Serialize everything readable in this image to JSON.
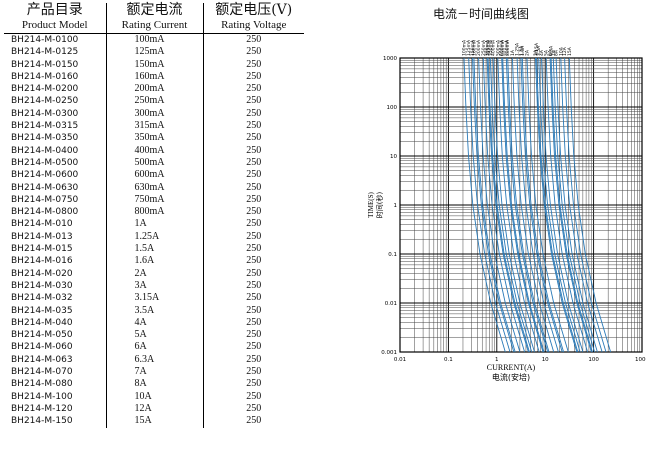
{
  "table": {
    "headers": [
      {
        "zh": "产品目录",
        "en": "Product Model"
      },
      {
        "zh": "额定电流",
        "en": "Rating Current"
      },
      {
        "zh": "额定电压(V)",
        "en": "Rating Voltage"
      }
    ],
    "rows": [
      [
        "BH214-M-0100",
        "100mA",
        "250"
      ],
      [
        "BH214-M-0125",
        "125mA",
        "250"
      ],
      [
        "BH214-M-0150",
        "150mA",
        "250"
      ],
      [
        "BH214-M-0160",
        "160mA",
        "250"
      ],
      [
        "BH214-M-0200",
        "200mA",
        "250"
      ],
      [
        "BH214-M-0250",
        "250mA",
        "250"
      ],
      [
        "BH214-M-0300",
        "300mA",
        "250"
      ],
      [
        "BH214-M-0315",
        "315mA",
        "250"
      ],
      [
        "BH214-M-0350",
        "350mA",
        "250"
      ],
      [
        "BH214-M-0400",
        "400mA",
        "250"
      ],
      [
        "BH214-M-0500",
        "500mA",
        "250"
      ],
      [
        "BH214-M-0600",
        "600mA",
        "250"
      ],
      [
        "BH214-M-0630",
        "630mA",
        "250"
      ],
      [
        "BH214-M-0750",
        "750mA",
        "250"
      ],
      [
        "BH214-M-0800",
        "800mA",
        "250"
      ],
      [
        "BH214-M-010",
        "1A",
        "250"
      ],
      [
        "BH214-M-013",
        "1.25A",
        "250"
      ],
      [
        "BH214-M-015",
        "1.5A",
        "250"
      ],
      [
        "BH214-M-016",
        "1.6A",
        "250"
      ],
      [
        "BH214-M-020",
        "2A",
        "250"
      ],
      [
        "BH214-M-030",
        "3A",
        "250"
      ],
      [
        "BH214-M-032",
        "3.15A",
        "250"
      ],
      [
        "BH214-M-035",
        "3.5A",
        "250"
      ],
      [
        "BH214-M-040",
        "4A",
        "250"
      ],
      [
        "BH214-M-050",
        "5A",
        "250"
      ],
      [
        "BH214-M-060",
        "6A",
        "250"
      ],
      [
        "BH214-M-063",
        "6.3A",
        "250"
      ],
      [
        "BH214-M-070",
        "7A",
        "250"
      ],
      [
        "BH214-M-080",
        "8A",
        "250"
      ],
      [
        "BH214-M-100",
        "10A",
        "250"
      ],
      [
        "BH214-M-120",
        "12A",
        "250"
      ],
      [
        "BH214-M-150",
        "15A",
        "250"
      ]
    ]
  },
  "chart_title": "电流－时间曲线图",
  "chart_data": {
    "type": "line",
    "x_scale": "log",
    "y_scale": "log",
    "xlim": [
      0.01,
      1000
    ],
    "ylim": [
      0.001,
      1000
    ],
    "x_ticks": [
      "0.01",
      "0.1",
      "1",
      "10",
      "100",
      "1000"
    ],
    "y_ticks": [
      "1000",
      "100",
      "10",
      "1",
      "0.1",
      "0.01",
      "0.001"
    ],
    "xlabel_en": "CURRENT(A)",
    "xlabel_zh": "电流(安培)",
    "ylabel_en": "TIME(S)",
    "ylabel_zh": "时间(秒)",
    "grid": true,
    "line_color": "#2a7ab8",
    "series_ratings": [
      0.1,
      0.125,
      0.15,
      0.16,
      0.2,
      0.25,
      0.3,
      0.315,
      0.35,
      0.4,
      0.5,
      0.6,
      0.63,
      0.75,
      0.8,
      1,
      1.25,
      1.5,
      1.6,
      2,
      3,
      3.15,
      3.5,
      4,
      5,
      6,
      6.3,
      7,
      8,
      10,
      12,
      15
    ],
    "series_labels": [
      "100mA",
      "125mA",
      "150mA",
      "160mA",
      "200mA",
      "250mA",
      "300mA",
      "315mA",
      "350mA",
      "400mA",
      "500mA",
      "600mA",
      "630mA",
      "750mA",
      "800mA",
      "1A",
      "1.25A",
      "1.5A",
      "1.6A",
      "2A",
      "3A",
      "3.15A",
      "3.5A",
      "4A",
      "5A",
      "6A",
      "6.3A",
      "7A",
      "8A",
      "10A",
      "12A",
      "15A"
    ],
    "curve_points": [
      {
        "multiple": 2.1,
        "time": 1000
      },
      {
        "multiple": 2.3,
        "time": 100
      },
      {
        "multiple": 2.6,
        "time": 10
      },
      {
        "multiple": 3.2,
        "time": 1
      },
      {
        "multiple": 4.5,
        "time": 0.1
      },
      {
        "multiple": 7.5,
        "time": 0.01
      },
      {
        "multiple": 15,
        "time": 0.001
      }
    ]
  }
}
